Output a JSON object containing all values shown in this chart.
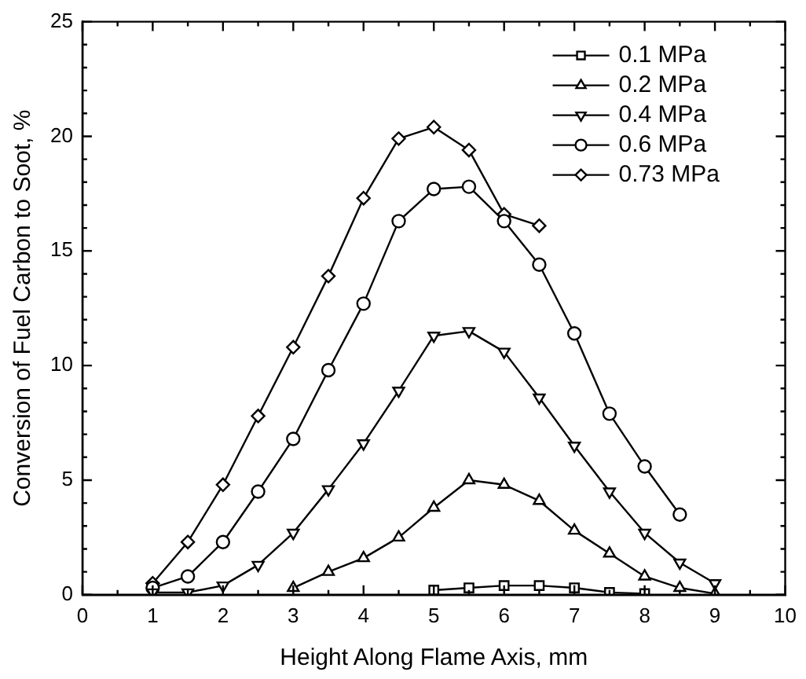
{
  "chart_data": {
    "type": "line",
    "xlabel": "Height Along Flame Axis, mm",
    "ylabel": "Conversion of Fuel Carbon to Soot, %",
    "xlim": [
      0,
      10
    ],
    "ylim": [
      0,
      25
    ],
    "xticks": [
      0,
      {
        "value": 0.5,
        "label": null
      },
      1,
      {
        "value": 1.5,
        "label": null
      },
      2,
      {
        "value": 2.5,
        "label": null
      },
      3,
      {
        "value": 3.5,
        "label": null
      },
      4,
      {
        "value": 4.5,
        "label": null
      },
      5,
      {
        "value": 5.5,
        "label": null
      },
      6,
      {
        "value": 6.5,
        "label": null
      },
      7,
      {
        "value": 7.5,
        "label": null
      },
      8,
      {
        "value": 8.5,
        "label": null
      },
      9,
      {
        "value": 9.5,
        "label": null
      },
      10
    ],
    "yticks": [
      0,
      {
        "value": 1,
        "label": null
      },
      {
        "value": 2,
        "label": null
      },
      {
        "value": 3,
        "label": null
      },
      {
        "value": 4,
        "label": null
      },
      5,
      {
        "value": 6,
        "label": null
      },
      {
        "value": 7,
        "label": null
      },
      {
        "value": 8,
        "label": null
      },
      {
        "value": 9,
        "label": null
      },
      10,
      {
        "value": 11,
        "label": null
      },
      {
        "value": 12,
        "label": null
      },
      {
        "value": 13,
        "label": null
      },
      {
        "value": 14,
        "label": null
      },
      15,
      {
        "value": 16,
        "label": null
      },
      {
        "value": 17,
        "label": null
      },
      {
        "value": 18,
        "label": null
      },
      {
        "value": 19,
        "label": null
      },
      20,
      {
        "value": 21,
        "label": null
      },
      {
        "value": 22,
        "label": null
      },
      {
        "value": 23,
        "label": null
      },
      {
        "value": 24,
        "label": null
      },
      25
    ],
    "grid": false,
    "legend": "top right",
    "line_style": "solid",
    "series": [
      {
        "name": "0.1 MPa",
        "color": "#000000",
        "marker": "square",
        "x": [
          5,
          5.5,
          6,
          6.5,
          7,
          7.5,
          8
        ],
        "values": [
          0.2,
          0.3,
          0.4,
          0.4,
          0.3,
          0.1,
          0.05
        ]
      },
      {
        "name": "0.2 MPa",
        "color": "#000000",
        "marker": "triangle",
        "x": [
          3,
          3.5,
          4,
          4.5,
          5,
          5.5,
          6,
          6.5,
          7,
          7.5,
          8,
          8.5,
          9
        ],
        "values": [
          0.3,
          1.0,
          1.6,
          2.5,
          3.8,
          5.0,
          4.8,
          4.1,
          2.8,
          1.8,
          0.8,
          0.3,
          0.05
        ]
      },
      {
        "name": "0.4 MPa",
        "color": "#000000",
        "marker": "triangle-down",
        "x": [
          1,
          1.5,
          2,
          2.5,
          3,
          3.5,
          4,
          4.5,
          5,
          5.5,
          6,
          6.5,
          7,
          7.5,
          8,
          8.5,
          9
        ],
        "values": [
          0.1,
          0.1,
          0.4,
          1.3,
          2.7,
          4.6,
          6.6,
          8.9,
          11.3,
          11.5,
          10.6,
          8.6,
          6.5,
          4.5,
          2.7,
          1.4,
          0.5
        ]
      },
      {
        "name": "0.6 MPa",
        "color": "#000000",
        "marker": "circle",
        "x": [
          1,
          1.5,
          2,
          2.5,
          3,
          3.5,
          4,
          4.5,
          5,
          5.5,
          6,
          6.5,
          7,
          7.5,
          8,
          8.5
        ],
        "values": [
          0.3,
          0.8,
          2.3,
          4.5,
          6.8,
          9.8,
          12.7,
          16.3,
          17.7,
          17.8,
          16.3,
          14.4,
          11.4,
          7.9,
          5.6,
          3.5
        ]
      },
      {
        "name": "0.73 MPa",
        "color": "#000000",
        "marker": "diamond",
        "x": [
          1,
          1.5,
          2,
          2.5,
          3,
          3.5,
          4,
          4.5,
          5,
          5.5,
          6,
          6.5
        ],
        "values": [
          0.5,
          2.3,
          4.8,
          7.8,
          10.8,
          13.9,
          17.3,
          19.9,
          20.4,
          19.4,
          16.6,
          16.1
        ]
      }
    ]
  }
}
